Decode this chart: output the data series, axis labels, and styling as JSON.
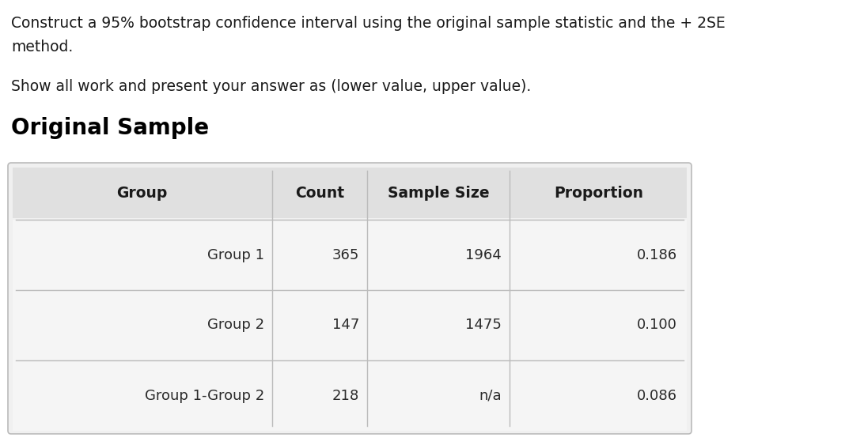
{
  "line1": "Construct a 95% bootstrap confidence interval using the original sample statistic and the + 2SE",
  "line2": "method.",
  "line3": "Show all work and present your answer as (lower value, upper value).",
  "section_title": "Original Sample",
  "table_headers": [
    "Group",
    "Count",
    "Sample Size",
    "Proportion"
  ],
  "table_rows": [
    [
      "Group 1",
      "365",
      "1964",
      "0.186"
    ],
    [
      "Group 2",
      "147",
      "1475",
      "0.100"
    ],
    [
      "Group 1-Group 2",
      "218",
      "n/a",
      "0.086"
    ]
  ],
  "bg_color": "#ffffff",
  "table_bg": "#f0f0f0",
  "table_border": "#bbbbbb",
  "header_text_color": "#1a1a1a",
  "body_text_color": "#2a2a2a",
  "text_color": "#1a1a1a",
  "title_color": "#000000",
  "header_row_bg": "#e0e0e0",
  "data_row_bg": "#f5f5f5"
}
